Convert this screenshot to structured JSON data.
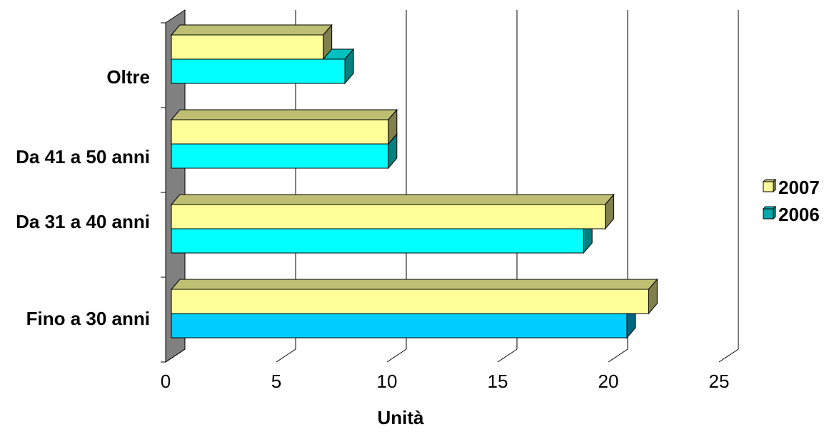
{
  "chart_data": {
    "type": "bar",
    "orientation": "horizontal",
    "style": "3d-clustered",
    "title": "",
    "xlabel": "Unità",
    "ylabel": "",
    "xlim": [
      0,
      25
    ],
    "x_ticks": [
      0,
      5,
      10,
      15,
      20,
      25
    ],
    "grid": "vertical",
    "categories": [
      "Fino a 30 anni",
      "Da 31 a 40 anni",
      "Da 41 a 50 anni",
      "Oltre"
    ],
    "series": [
      {
        "name": "2007",
        "values": [
          22,
          20,
          10,
          7
        ],
        "color": "#ffff99"
      },
      {
        "name": "2006",
        "values": [
          21,
          19,
          10,
          8
        ],
        "color": "#00ffff"
      }
    ],
    "legend_position": "right",
    "colors": {
      "bar_2007": "#ffff99",
      "bar_2006": "#00ffff",
      "bar_2006_first": "#00ccff",
      "wall": "#808080",
      "grid": "#000000"
    }
  }
}
